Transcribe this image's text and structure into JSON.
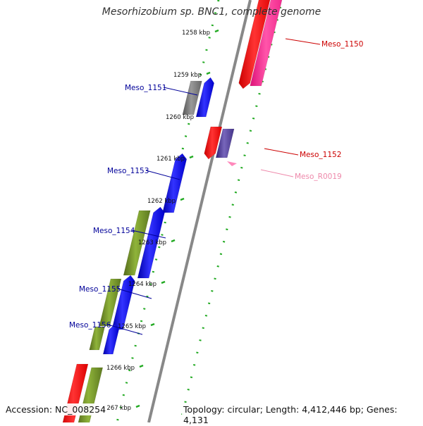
{
  "title": "Mesorhizobium sp. BNC1, complete genome",
  "footer": {
    "accession": "Accession: NC_008254",
    "topology": "Topology: circular; Length: 4,412,446 bp; Genes: 4,131"
  },
  "ticks": [
    "1258 kbp",
    "1259 kbp",
    "1260 kbp",
    "1261 kbp",
    "1262 kbp",
    "1263 kbp",
    "1264 kbp",
    "1265 kbp",
    "1266 kbp",
    "1267 kbp"
  ],
  "features": [
    {
      "label": "Meso_1150",
      "color": "#cc0000"
    },
    {
      "label": "Meso_1151",
      "color": "#000099"
    },
    {
      "label": "Meso_1152",
      "color": "#cc0000"
    },
    {
      "label": "Meso_R0019",
      "color": "#ee88aa"
    },
    {
      "label": "Meso_1153",
      "color": "#000099"
    },
    {
      "label": "Meso_1154",
      "color": "#000099"
    },
    {
      "label": "Meso_1155",
      "color": "#000099"
    },
    {
      "label": "Meso_1156",
      "color": "#000099"
    }
  ],
  "colors": {
    "backbone": "#888888",
    "tick_marks": "#22aa22",
    "forward_cds": "#0000ff",
    "reverse_cds": "#ff0000",
    "rna": "#ff3399",
    "olive_track": "#6b8e23",
    "gray_track": "#777777",
    "slate_track": "#554499"
  }
}
